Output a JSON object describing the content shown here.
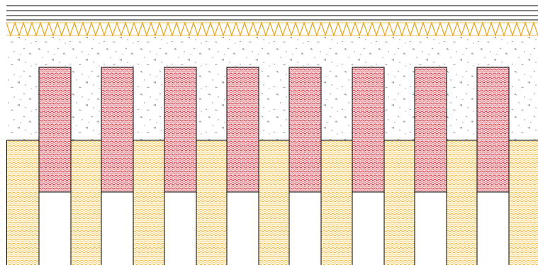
{
  "diagram": {
    "kind": "construction-section-hatch-drawing",
    "layers": [
      {
        "name": "top-slab",
        "pattern": "plain-lines"
      },
      {
        "name": "insulation",
        "pattern": "zigzag",
        "color": "#e8a317"
      },
      {
        "name": "concrete",
        "pattern": "aggregate-dots",
        "color": "#9a9a9a"
      },
      {
        "name": "sand-fill",
        "pattern": "wavy-dots",
        "color": "#e8a317"
      }
    ],
    "colors": {
      "outline": "#000000",
      "insulation": "#e8a317",
      "concrete_dots": "#9a9a9a",
      "red_fill": "#cc1122",
      "red_background": "#f7d6d8",
      "yellow_fill": "#e8a317",
      "yellow_background": "#fff6de"
    },
    "red_column_count": 8,
    "white_column_count": 8
  }
}
